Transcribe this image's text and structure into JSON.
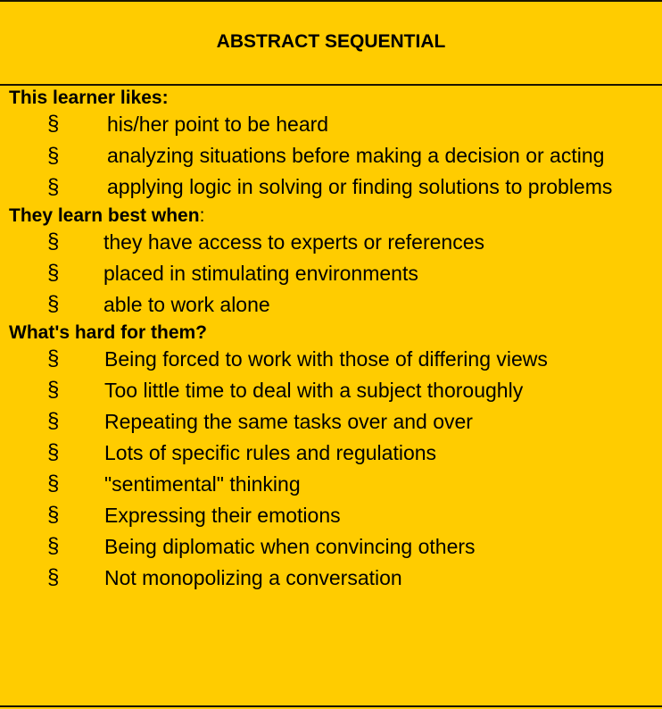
{
  "title": "ABSTRACT SEQUENTIAL",
  "bullet_symbol": "§",
  "colors": {
    "background": "#ffcc00",
    "text": "#000000",
    "rule": "#1a1400"
  },
  "sections": [
    {
      "heading": "This learner likes:",
      "heading_suffix": "",
      "items": [
        "his/her point to be heard",
        "analyzing situations before making a decision or acting",
        "applying logic in solving or finding solutions to problems"
      ]
    },
    {
      "heading": "They learn best when",
      "heading_suffix": ":",
      "items": [
        "they have access to experts or references",
        "placed in stimulating environments",
        "able to work alone"
      ]
    },
    {
      "heading": "What's hard for them?",
      "heading_suffix": "",
      "items": [
        "Being forced to work with those of differing views",
        "Too little time to deal with a subject thoroughly",
        "Repeating the same tasks over and over",
        "Lots of specific rules and regulations",
        "\"sentimental\" thinking",
        "Expressing their emotions",
        "Being diplomatic when convincing others",
        "Not monopolizing a conversation"
      ]
    }
  ]
}
